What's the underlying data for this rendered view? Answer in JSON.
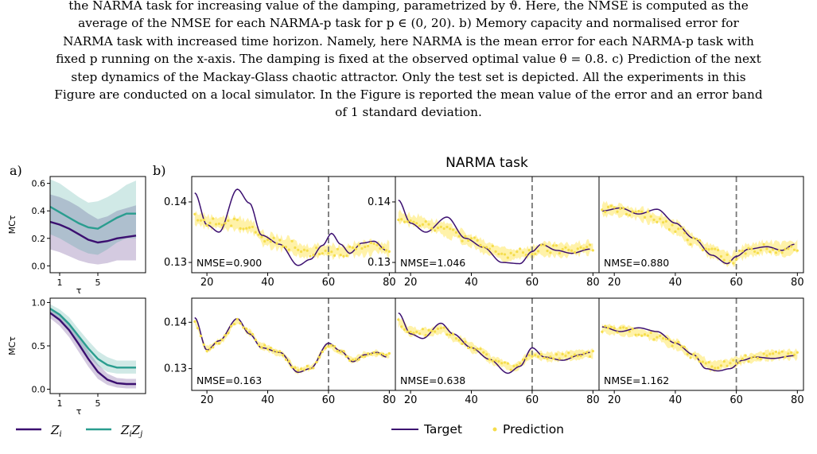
{
  "caption": {
    "line0": "the NARMA task for increasing value of the damping, parametrized by ϑ. Here, the NMSE is computed as the",
    "line1": "average of the NMSE for each NARMA-p task for p ∈ (0, 20). b) Memory capacity and normalised error for",
    "line2": "NARMA task with increased time horizon. Namely, here NARMA is the mean error for each NARMA-p task with",
    "line3": "fixed p running on the x-axis. The damping is fixed at the observed optimal value θ = 0.8. c) Prediction of the next",
    "line4": "step dynamics of the Mackay-Glass chaotic attractor. Only the test set is depicted. All the experiments in this",
    "line5": "Figure are conducted on a local simulator. In the Figure is reported the mean value of the error and an error band",
    "line6": "of 1 standard deviation."
  },
  "panel_a": {
    "label": "a)",
    "ylabel": "MCτ",
    "xlabel": "τ",
    "legend": [
      "Z_i",
      "Z_i Z_j"
    ]
  },
  "panel_b": {
    "label": "b)",
    "title": "NARMA task",
    "legend": [
      "Target",
      "Prediction"
    ]
  },
  "colors": {
    "zi": "#3b0f70",
    "zizj": "#2a9d8f",
    "target": "#3b0f70",
    "prediction": "#f5dd4c",
    "band": "#fff09a",
    "vline": "#777777"
  },
  "chart_data": [
    {
      "type": "line",
      "id": "a-top",
      "xlim": [
        0,
        10
      ],
      "ylim": [
        -0.05,
        0.65
      ],
      "xticks": [
        1,
        5
      ],
      "yticks": [
        0.0,
        0.2,
        0.4,
        0.6
      ],
      "ytick_labels": [
        "0.0",
        "0.2",
        "0.4",
        "0.6"
      ],
      "x": [
        0,
        1,
        2,
        3,
        4,
        5,
        6,
        7,
        8,
        9
      ],
      "series": [
        {
          "name": "Z_i",
          "values": [
            0.32,
            0.3,
            0.27,
            0.23,
            0.19,
            0.17,
            0.18,
            0.2,
            0.21,
            0.22
          ],
          "band": [
            [
              0.12,
              0.52
            ],
            [
              0.1,
              0.5
            ],
            [
              0.07,
              0.47
            ],
            [
              0.04,
              0.43
            ],
            [
              0.02,
              0.38
            ],
            [
              0.01,
              0.34
            ],
            [
              0.02,
              0.36
            ],
            [
              0.04,
              0.4
            ],
            [
              0.04,
              0.42
            ],
            [
              0.04,
              0.44
            ]
          ]
        },
        {
          "name": "Z_i Z_j",
          "values": [
            0.43,
            0.39,
            0.35,
            0.31,
            0.28,
            0.27,
            0.31,
            0.35,
            0.38,
            0.38
          ],
          "band": [
            [
              0.23,
              0.63
            ],
            [
              0.2,
              0.6
            ],
            [
              0.16,
              0.55
            ],
            [
              0.12,
              0.5
            ],
            [
              0.09,
              0.46
            ],
            [
              0.08,
              0.47
            ],
            [
              0.12,
              0.5
            ],
            [
              0.17,
              0.54
            ],
            [
              0.2,
              0.59
            ],
            [
              0.2,
              0.62
            ]
          ]
        }
      ]
    },
    {
      "type": "line",
      "id": "a-bottom",
      "xlim": [
        0,
        10
      ],
      "ylim": [
        -0.05,
        1.05
      ],
      "xticks": [
        1,
        5
      ],
      "yticks": [
        0.0,
        0.5,
        1.0
      ],
      "ytick_labels": [
        "0.0",
        "0.5",
        "1.0"
      ],
      "x": [
        0,
        1,
        2,
        3,
        4,
        5,
        6,
        7,
        8,
        9
      ],
      "series": [
        {
          "name": "Z_i",
          "values": [
            0.88,
            0.8,
            0.68,
            0.52,
            0.35,
            0.2,
            0.11,
            0.07,
            0.06,
            0.06
          ],
          "band": [
            [
              0.82,
              0.94
            ],
            [
              0.73,
              0.87
            ],
            [
              0.6,
              0.76
            ],
            [
              0.43,
              0.62
            ],
            [
              0.26,
              0.44
            ],
            [
              0.12,
              0.29
            ],
            [
              0.05,
              0.18
            ],
            [
              0.02,
              0.13
            ],
            [
              0.01,
              0.12
            ],
            [
              0.01,
              0.12
            ]
          ]
        },
        {
          "name": "Z_i Z_j",
          "values": [
            0.93,
            0.86,
            0.75,
            0.61,
            0.47,
            0.35,
            0.28,
            0.25,
            0.25,
            0.25
          ],
          "band": [
            [
              0.88,
              0.98
            ],
            [
              0.8,
              0.92
            ],
            [
              0.68,
              0.83
            ],
            [
              0.53,
              0.69
            ],
            [
              0.38,
              0.56
            ],
            [
              0.27,
              0.44
            ],
            [
              0.2,
              0.37
            ],
            [
              0.18,
              0.33
            ],
            [
              0.18,
              0.33
            ],
            [
              0.18,
              0.33
            ]
          ]
        }
      ]
    },
    {
      "type": "line",
      "id": "b-1",
      "nmse": "NMSE=0.900",
      "xlim": [
        15,
        82
      ],
      "ylim": [
        0.1283,
        0.1442
      ],
      "xticks": [
        20,
        40,
        60,
        80
      ],
      "yticks": [
        0.13,
        0.14
      ],
      "ytick_labels": [
        "0.13",
        "0.14"
      ],
      "vline": 60,
      "target": [
        [
          16,
          0.1415
        ],
        [
          20,
          0.1362
        ],
        [
          24,
          0.135
        ],
        [
          30,
          0.1421
        ],
        [
          34,
          0.1398
        ],
        [
          38,
          0.1345
        ],
        [
          44,
          0.133
        ],
        [
          50,
          0.1295
        ],
        [
          54,
          0.1305
        ],
        [
          58,
          0.1328
        ],
        [
          61,
          0.1348
        ],
        [
          64,
          0.133
        ],
        [
          67,
          0.1315
        ],
        [
          71,
          0.1332
        ],
        [
          75,
          0.1335
        ],
        [
          79,
          0.132
        ]
      ],
      "prediction": [
        [
          16,
          0.1372
        ],
        [
          22,
          0.1366
        ],
        [
          28,
          0.1365
        ],
        [
          34,
          0.136
        ],
        [
          40,
          0.1336
        ],
        [
          46,
          0.133
        ],
        [
          52,
          0.1318
        ],
        [
          58,
          0.132
        ],
        [
          64,
          0.1318
        ],
        [
          70,
          0.1322
        ],
        [
          76,
          0.1325
        ],
        [
          80,
          0.1322
        ]
      ],
      "noise": 0.0012
    },
    {
      "type": "line",
      "id": "b-2",
      "nmse": "NMSE=1.046",
      "xlim": [
        15,
        82
      ],
      "ylim": [
        0.1283,
        0.1442
      ],
      "xticks": [
        20,
        40,
        60,
        80
      ],
      "yticks": [
        0.13,
        0.14
      ],
      "ytick_labels": [
        "0.13",
        "0.14"
      ],
      "vline": 60,
      "target": [
        [
          16,
          0.1403
        ],
        [
          20,
          0.1365
        ],
        [
          25,
          0.135
        ],
        [
          32,
          0.1375
        ],
        [
          38,
          0.134
        ],
        [
          44,
          0.1325
        ],
        [
          50,
          0.13
        ],
        [
          56,
          0.1298
        ],
        [
          60,
          0.1318
        ],
        [
          63,
          0.133
        ],
        [
          68,
          0.132
        ],
        [
          73,
          0.1315
        ],
        [
          79,
          0.1322
        ]
      ],
      "prediction": [
        [
          16,
          0.1375
        ],
        [
          22,
          0.1368
        ],
        [
          28,
          0.136
        ],
        [
          34,
          0.135
        ],
        [
          40,
          0.1335
        ],
        [
          46,
          0.1322
        ],
        [
          52,
          0.1312
        ],
        [
          58,
          0.1316
        ],
        [
          64,
          0.1322
        ],
        [
          70,
          0.132
        ],
        [
          76,
          0.1323
        ],
        [
          80,
          0.1325
        ]
      ],
      "noise": 0.0011
    },
    {
      "type": "line",
      "id": "b-3",
      "nmse": "NMSE=0.880",
      "xlim": [
        15,
        82
      ],
      "ylim": [
        0.1283,
        0.1442
      ],
      "xticks": [
        20,
        40,
        60,
        80
      ],
      "yticks": [],
      "ytick_labels": [],
      "vline": 60,
      "target": [
        [
          16,
          0.1385
        ],
        [
          22,
          0.139
        ],
        [
          28,
          0.138
        ],
        [
          34,
          0.1388
        ],
        [
          40,
          0.1365
        ],
        [
          46,
          0.134
        ],
        [
          52,
          0.1312
        ],
        [
          57,
          0.1298
        ],
        [
          60,
          0.131
        ],
        [
          64,
          0.1322
        ],
        [
          70,
          0.1326
        ],
        [
          75,
          0.132
        ],
        [
          79,
          0.133
        ]
      ],
      "prediction": [
        [
          16,
          0.1388
        ],
        [
          22,
          0.1386
        ],
        [
          28,
          0.138
        ],
        [
          34,
          0.1372
        ],
        [
          40,
          0.1358
        ],
        [
          46,
          0.1336
        ],
        [
          52,
          0.1318
        ],
        [
          58,
          0.1305
        ],
        [
          64,
          0.132
        ],
        [
          70,
          0.1325
        ],
        [
          76,
          0.1322
        ],
        [
          80,
          0.1326
        ]
      ],
      "noise": 0.0011
    },
    {
      "type": "line",
      "id": "b-4",
      "nmse": "NMSE=0.163",
      "xlim": [
        15,
        82
      ],
      "ylim": [
        0.1253,
        0.1452
      ],
      "xticks": [
        20,
        40,
        60,
        80
      ],
      "yticks": [
        0.13,
        0.14
      ],
      "ytick_labels": [
        "0.13",
        "0.14"
      ],
      "vline": 60,
      "target": [
        [
          16,
          0.141
        ],
        [
          20,
          0.134
        ],
        [
          24,
          0.136
        ],
        [
          30,
          0.1408
        ],
        [
          34,
          0.1375
        ],
        [
          38,
          0.1345
        ],
        [
          44,
          0.1335
        ],
        [
          50,
          0.1292
        ],
        [
          54,
          0.13
        ],
        [
          60,
          0.1355
        ],
        [
          64,
          0.1338
        ],
        [
          68,
          0.1315
        ],
        [
          72,
          0.133
        ],
        [
          76,
          0.1335
        ],
        [
          79,
          0.1325
        ]
      ],
      "prediction": [
        [
          16,
          0.14
        ],
        [
          20,
          0.1342
        ],
        [
          24,
          0.1358
        ],
        [
          30,
          0.1402
        ],
        [
          34,
          0.1378
        ],
        [
          38,
          0.1348
        ],
        [
          44,
          0.1333
        ],
        [
          50,
          0.1296
        ],
        [
          54,
          0.1302
        ],
        [
          60,
          0.135
        ],
        [
          64,
          0.1336
        ],
        [
          68,
          0.1318
        ],
        [
          72,
          0.133
        ],
        [
          76,
          0.1333
        ],
        [
          79,
          0.1328
        ]
      ],
      "noise": 0.0007
    },
    {
      "type": "line",
      "id": "b-5",
      "nmse": "NMSE=0.638",
      "xlim": [
        15,
        82
      ],
      "ylim": [
        0.1253,
        0.1452
      ],
      "xticks": [
        20,
        40,
        60,
        80
      ],
      "yticks": [],
      "ytick_labels": [],
      "vline": 60,
      "target": [
        [
          16,
          0.142
        ],
        [
          20,
          0.1375
        ],
        [
          24,
          0.1365
        ],
        [
          30,
          0.1398
        ],
        [
          34,
          0.1375
        ],
        [
          40,
          0.1345
        ],
        [
          46,
          0.132
        ],
        [
          52,
          0.129
        ],
        [
          56,
          0.1305
        ],
        [
          60,
          0.1345
        ],
        [
          64,
          0.1325
        ],
        [
          70,
          0.1318
        ],
        [
          76,
          0.133
        ],
        [
          79,
          0.1335
        ]
      ],
      "prediction": [
        [
          16,
          0.14
        ],
        [
          20,
          0.138
        ],
        [
          26,
          0.1378
        ],
        [
          30,
          0.1385
        ],
        [
          36,
          0.1362
        ],
        [
          42,
          0.134
        ],
        [
          48,
          0.1315
        ],
        [
          54,
          0.1302
        ],
        [
          60,
          0.133
        ],
        [
          66,
          0.1325
        ],
        [
          72,
          0.1328
        ],
        [
          79,
          0.1332
        ]
      ],
      "noise": 0.001
    },
    {
      "type": "line",
      "id": "b-6",
      "nmse": "NMSE=1.162",
      "xlim": [
        15,
        82
      ],
      "ylim": [
        0.1253,
        0.1452
      ],
      "xticks": [
        20,
        40,
        60,
        80
      ],
      "yticks": [],
      "ytick_labels": [],
      "vline": 60,
      "target": [
        [
          16,
          0.139
        ],
        [
          22,
          0.138
        ],
        [
          28,
          0.1388
        ],
        [
          34,
          0.138
        ],
        [
          40,
          0.1355
        ],
        [
          46,
          0.133
        ],
        [
          50,
          0.13
        ],
        [
          54,
          0.1295
        ],
        [
          58,
          0.13
        ],
        [
          62,
          0.1318
        ],
        [
          66,
          0.1325
        ],
        [
          72,
          0.1322
        ],
        [
          79,
          0.1328
        ]
      ],
      "prediction": [
        [
          16,
          0.1385
        ],
        [
          22,
          0.1382
        ],
        [
          28,
          0.1378
        ],
        [
          34,
          0.137
        ],
        [
          40,
          0.1352
        ],
        [
          46,
          0.1328
        ],
        [
          52,
          0.1305
        ],
        [
          58,
          0.1312
        ],
        [
          64,
          0.1322
        ],
        [
          70,
          0.1328
        ],
        [
          76,
          0.133
        ],
        [
          80,
          0.133
        ]
      ],
      "noise": 0.0011
    }
  ]
}
